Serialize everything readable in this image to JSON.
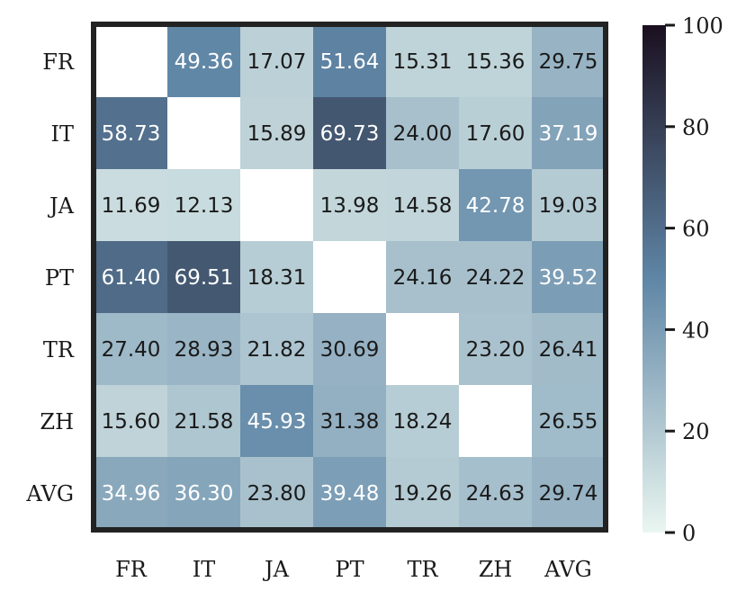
{
  "chart_data": {
    "type": "heatmap",
    "title": "",
    "xlabel": "",
    "ylabel": "",
    "x_labels": [
      "FR",
      "IT",
      "JA",
      "PT",
      "TR",
      "ZH",
      "AVG"
    ],
    "y_labels": [
      "FR",
      "IT",
      "JA",
      "PT",
      "TR",
      "ZH",
      "AVG"
    ],
    "values": [
      [
        null,
        49.36,
        17.07,
        51.64,
        15.31,
        15.36,
        29.75
      ],
      [
        58.73,
        null,
        15.89,
        69.73,
        24.0,
        17.6,
        37.19
      ],
      [
        11.69,
        12.13,
        null,
        13.98,
        14.58,
        42.78,
        19.03
      ],
      [
        61.4,
        69.51,
        18.31,
        null,
        24.16,
        24.22,
        39.52
      ],
      [
        27.4,
        28.93,
        21.82,
        30.69,
        null,
        23.2,
        26.41
      ],
      [
        15.6,
        21.58,
        45.93,
        31.38,
        18.24,
        null,
        26.55
      ],
      [
        34.96,
        36.3,
        23.8,
        39.48,
        19.26,
        24.63,
        29.74
      ]
    ],
    "value_format": "fixed-2",
    "colorbar": {
      "range": [
        0,
        100
      ],
      "ticks": [
        "0",
        "20",
        "40",
        "60",
        "80",
        "100"
      ],
      "colormap": "cubehelix-light",
      "colors": {
        "low": "#eaf6f0",
        "mid": "#5f86a6",
        "high": "#1a0f1f"
      }
    },
    "missing_cell_color": "#ffffff",
    "frame_color": "#222222"
  }
}
